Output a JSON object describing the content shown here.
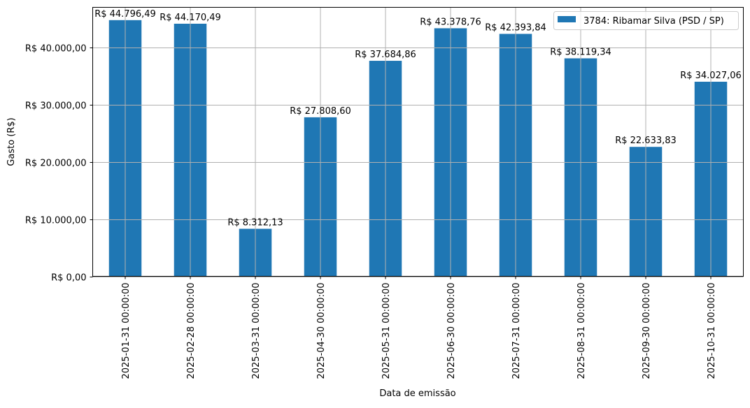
{
  "chart_data": {
    "type": "bar",
    "title": "",
    "xlabel": "Data de emissão",
    "ylabel": "Gasto (R$)",
    "ylim": [
      0,
      47036
    ],
    "grid": true,
    "legend_position": "top-right",
    "color": "#1f77b4",
    "categories": [
      "2025-01-31 00:00:00",
      "2025-02-28 00:00:00",
      "2025-03-31 00:00:00",
      "2025-04-30 00:00:00",
      "2025-05-31 00:00:00",
      "2025-06-30 00:00:00",
      "2025-07-31 00:00:00",
      "2025-08-31 00:00:00",
      "2025-09-30 00:00:00",
      "2025-10-31 00:00:00"
    ],
    "series": [
      {
        "name": "3784: Ribamar Silva (PSD / SP)",
        "values": [
          44796.49,
          44170.49,
          8312.13,
          27808.6,
          37684.86,
          43378.76,
          42393.84,
          38119.34,
          22633.83,
          34027.06
        ]
      }
    ],
    "data_labels": [
      "R$ 44.796,49",
      "R$ 44.170,49",
      "R$ 8.312,13",
      "R$ 27.808,60",
      "R$ 37.684,86",
      "R$ 43.378,76",
      "R$ 42.393,84",
      "R$ 38.119,34",
      "R$ 22.633,83",
      "R$ 34.027,06"
    ],
    "yticks": [
      0,
      10000,
      20000,
      30000,
      40000
    ],
    "ytick_labels": [
      "R$ 0,00",
      "R$ 10.000,00",
      "R$ 20.000,00",
      "R$ 30.000,00",
      "R$ 40.000,00"
    ]
  }
}
